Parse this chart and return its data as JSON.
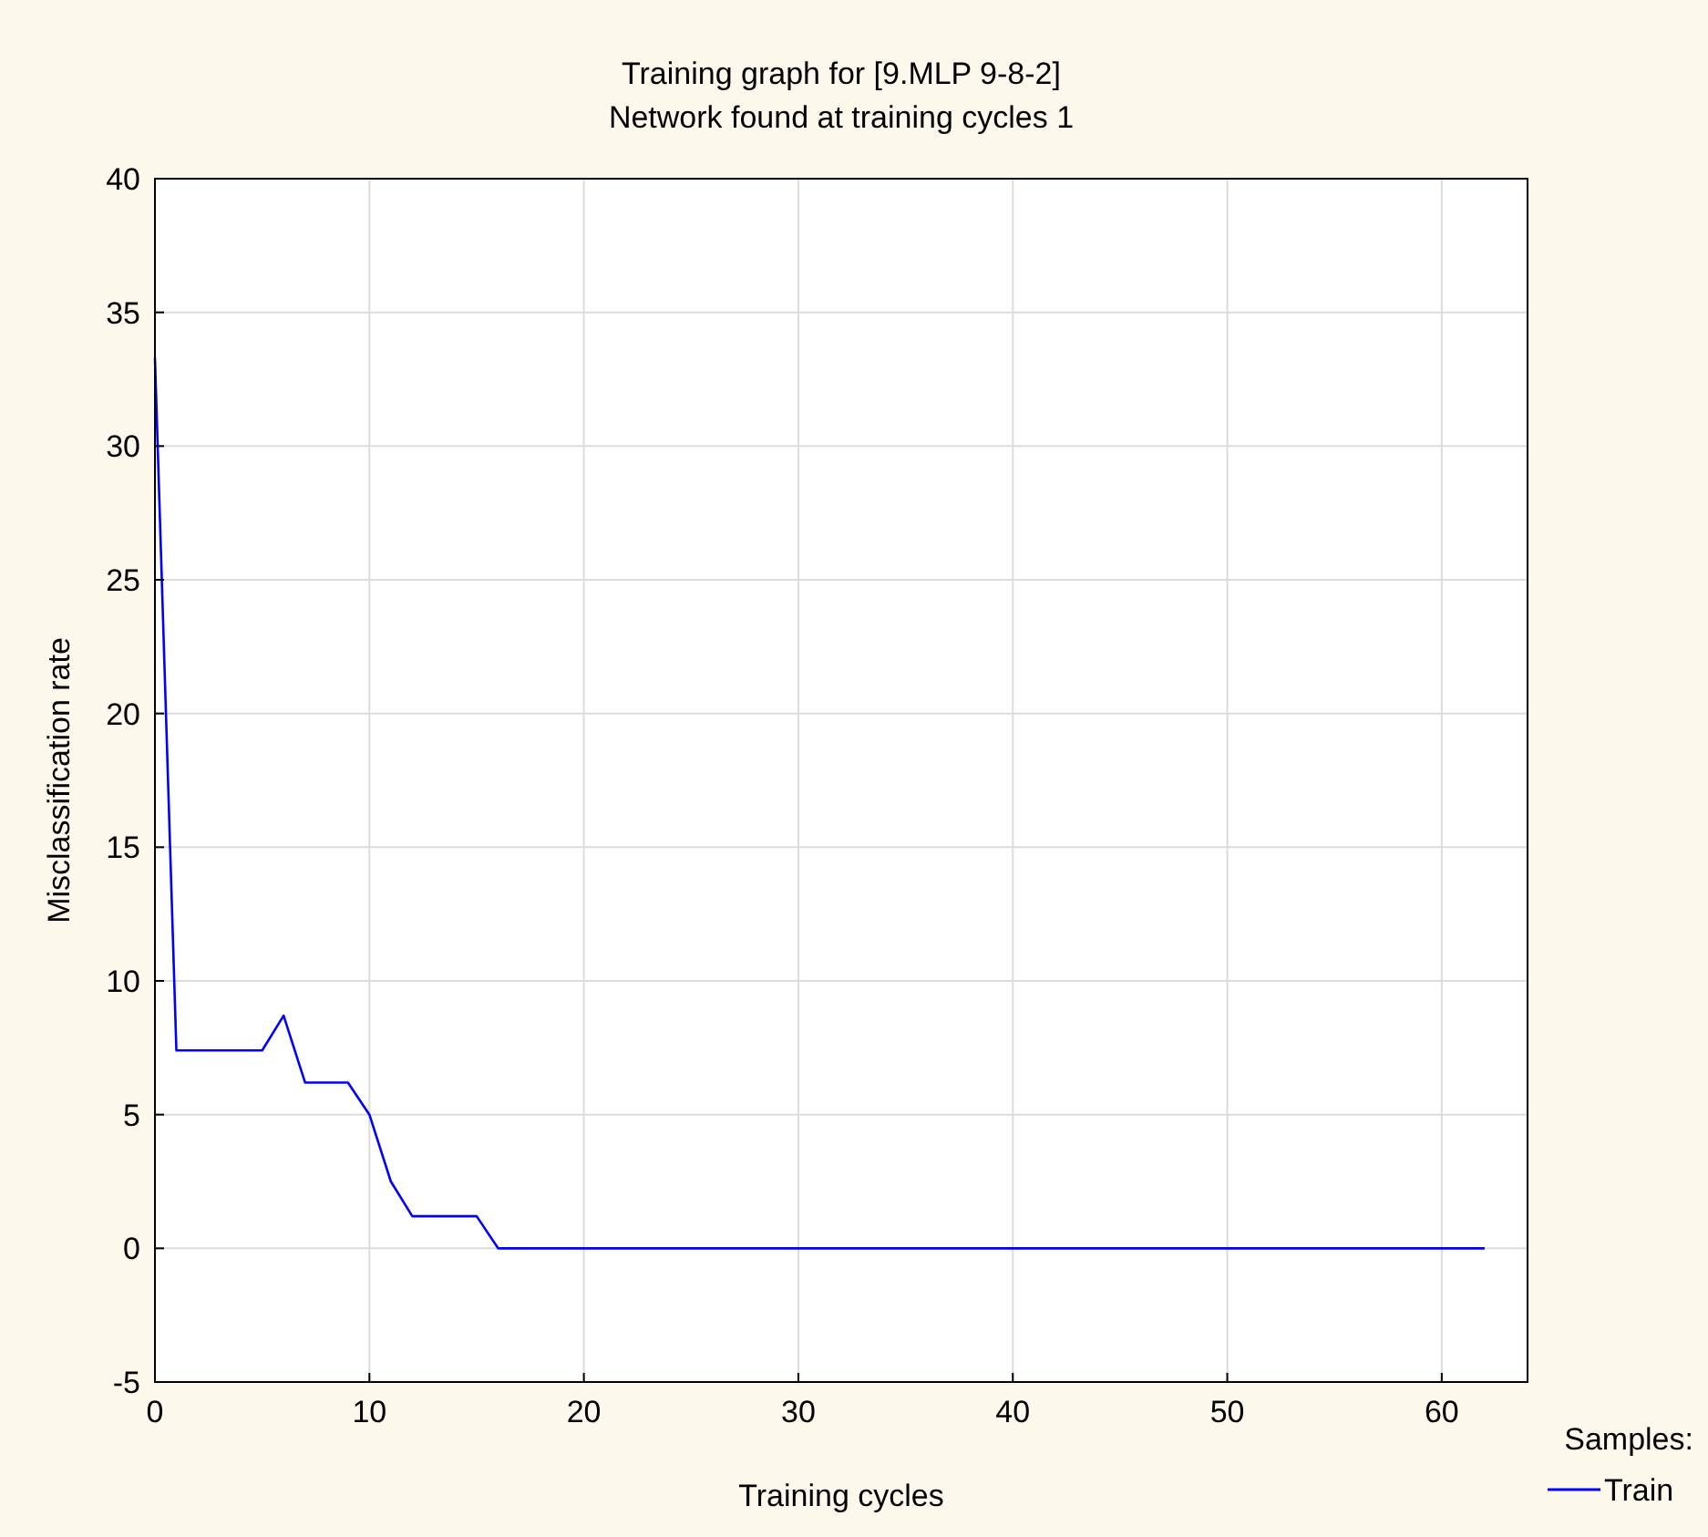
{
  "chart_data": {
    "type": "line",
    "title": "Training graph for [9.MLP 9-8-2]",
    "subtitle": "Network found at training cycles 1",
    "xlabel": "Training cycles",
    "ylabel": "Misclassification rate",
    "legend_title": "Samples:",
    "series": [
      {
        "name": "Train",
        "color": "#0000ff",
        "x": [
          0,
          1,
          2,
          3,
          4,
          5,
          6,
          7,
          8,
          9,
          10,
          11,
          12,
          13,
          14,
          15,
          16,
          62
        ],
        "values": [
          33.3,
          7.4,
          7.4,
          7.4,
          7.4,
          7.4,
          8.7,
          6.2,
          6.2,
          6.2,
          5.0,
          2.5,
          1.2,
          1.2,
          1.2,
          1.2,
          0,
          0
        ]
      }
    ],
    "xlim": [
      0,
      64
    ],
    "xticks": [
      0,
      10,
      20,
      30,
      40,
      50,
      60
    ],
    "ylim": [
      -5,
      40
    ],
    "yticks": [
      -5,
      0,
      5,
      10,
      15,
      20,
      25,
      30,
      35,
      40
    ],
    "grid": true,
    "legend": "bottom right",
    "marker": "none",
    "line_style": "solid"
  }
}
